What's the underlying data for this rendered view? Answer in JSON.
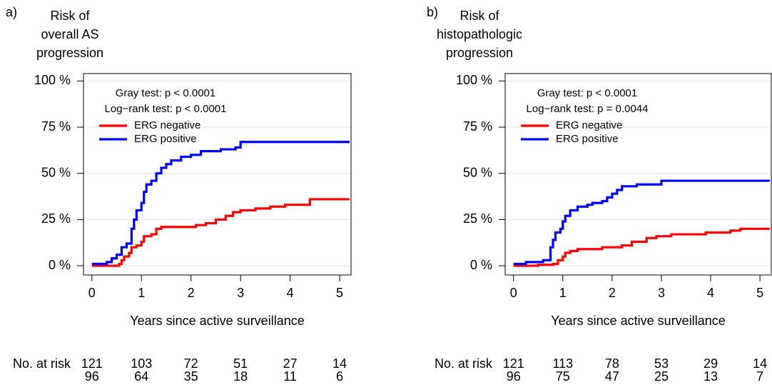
{
  "chart_data": [
    {
      "type": "line",
      "panel_label": "a)",
      "title": [
        "Risk of",
        "overall AS",
        "progression"
      ],
      "annotations": [
        "Gray test: p < 0.0001",
        "Log−rank test: p < 0.0001"
      ],
      "xlabel": "Years since active surveillance",
      "xlim": [
        -0.17,
        5.23
      ],
      "ylim": [
        -5,
        104
      ],
      "xticks": [
        0,
        1,
        2,
        3,
        4,
        5
      ],
      "yticks": [
        {
          "value": 0,
          "label": "0 %"
        },
        {
          "value": 25,
          "label": "25 %"
        },
        {
          "value": 50,
          "label": "50 %"
        },
        {
          "value": 75,
          "label": "75 %"
        },
        {
          "value": 100,
          "label": "100 %"
        }
      ],
      "step": true,
      "legend": "top-left",
      "series": [
        {
          "name": "ERG negative",
          "color": "#ff0000",
          "x": [
            0,
            0.55,
            0.6,
            0.65,
            0.75,
            0.8,
            0.9,
            1.0,
            1.05,
            1.2,
            1.3,
            1.4,
            2.0,
            2.1,
            2.3,
            2.5,
            2.7,
            2.85,
            3.0,
            3.3,
            3.6,
            3.9,
            4.4,
            5.2
          ],
          "values": [
            0,
            1,
            3,
            5,
            7,
            10,
            11,
            13,
            16,
            17,
            20,
            21,
            21,
            22,
            23,
            25,
            27,
            29,
            30,
            31,
            32,
            33,
            36,
            36
          ]
        },
        {
          "name": "ERG positive",
          "color": "#0000ff",
          "x": [
            0,
            0.3,
            0.4,
            0.5,
            0.6,
            0.7,
            0.8,
            0.85,
            0.9,
            1.0,
            1.05,
            1.1,
            1.2,
            1.3,
            1.4,
            1.5,
            1.6,
            1.8,
            2.0,
            2.2,
            2.6,
            2.9,
            3.0,
            5.2
          ],
          "values": [
            1,
            2,
            4,
            6,
            10,
            12,
            20,
            25,
            30,
            34,
            40,
            44,
            46,
            50,
            53,
            55,
            57,
            59,
            60,
            62,
            63,
            64,
            67,
            67
          ]
        }
      ],
      "risk_table": {
        "label": "No. at risk",
        "times": [
          0,
          1,
          2,
          3,
          4,
          5
        ],
        "rows": [
          {
            "color": "#ff0000",
            "values": [
              121,
              103,
              72,
              51,
              27,
              14
            ]
          },
          {
            "color": "#0000ff",
            "values": [
              96,
              64,
              35,
              18,
              11,
              6
            ]
          }
        ]
      }
    },
    {
      "type": "line",
      "panel_label": "b)",
      "title": [
        "Risk of",
        "histopathologic",
        "progression"
      ],
      "annotations": [
        "Gray test: p < 0.0001",
        "Log−rank test: p = 0.0044"
      ],
      "xlabel": "Years since active surveillance",
      "xlim": [
        -0.17,
        5.23
      ],
      "ylim": [
        -5,
        104
      ],
      "xticks": [
        0,
        1,
        2,
        3,
        4,
        5
      ],
      "yticks": [
        {
          "value": 0,
          "label": "0 %"
        },
        {
          "value": 25,
          "label": "25 %"
        },
        {
          "value": 50,
          "label": "50 %"
        },
        {
          "value": 75,
          "label": "75 %"
        },
        {
          "value": 100,
          "label": "100 %"
        }
      ],
      "step": true,
      "legend": "top-left",
      "series": [
        {
          "name": "ERG negative",
          "color": "#ff0000",
          "x": [
            0,
            0.5,
            0.8,
            0.9,
            1.0,
            1.05,
            1.15,
            1.3,
            1.8,
            2.2,
            2.4,
            2.7,
            2.9,
            3.2,
            3.9,
            4.4,
            4.6,
            5.2
          ],
          "values": [
            0,
            0.5,
            1,
            3,
            5,
            7,
            8,
            9,
            10,
            11,
            13,
            15,
            16,
            17,
            18,
            19,
            20,
            20
          ]
        },
        {
          "name": "ERG positive",
          "color": "#0000ff",
          "x": [
            0,
            0.25,
            0.6,
            0.75,
            0.8,
            0.85,
            0.95,
            1.0,
            1.05,
            1.15,
            1.3,
            1.5,
            1.6,
            1.8,
            1.9,
            2.0,
            2.1,
            2.2,
            2.5,
            3.0,
            5.2
          ],
          "values": [
            1,
            2,
            3,
            10,
            14,
            18,
            20,
            24,
            27,
            30,
            32,
            33,
            34,
            35,
            37,
            39,
            41,
            43,
            44,
            46,
            46
          ]
        }
      ],
      "risk_table": {
        "label": "No. at risk",
        "times": [
          0,
          1,
          2,
          3,
          4,
          5
        ],
        "rows": [
          {
            "color": "#ff0000",
            "values": [
              121,
              113,
              78,
              53,
              29,
              14
            ]
          },
          {
            "color": "#0000ff",
            "values": [
              96,
              75,
              47,
              25,
              13,
              7
            ]
          }
        ]
      }
    }
  ]
}
